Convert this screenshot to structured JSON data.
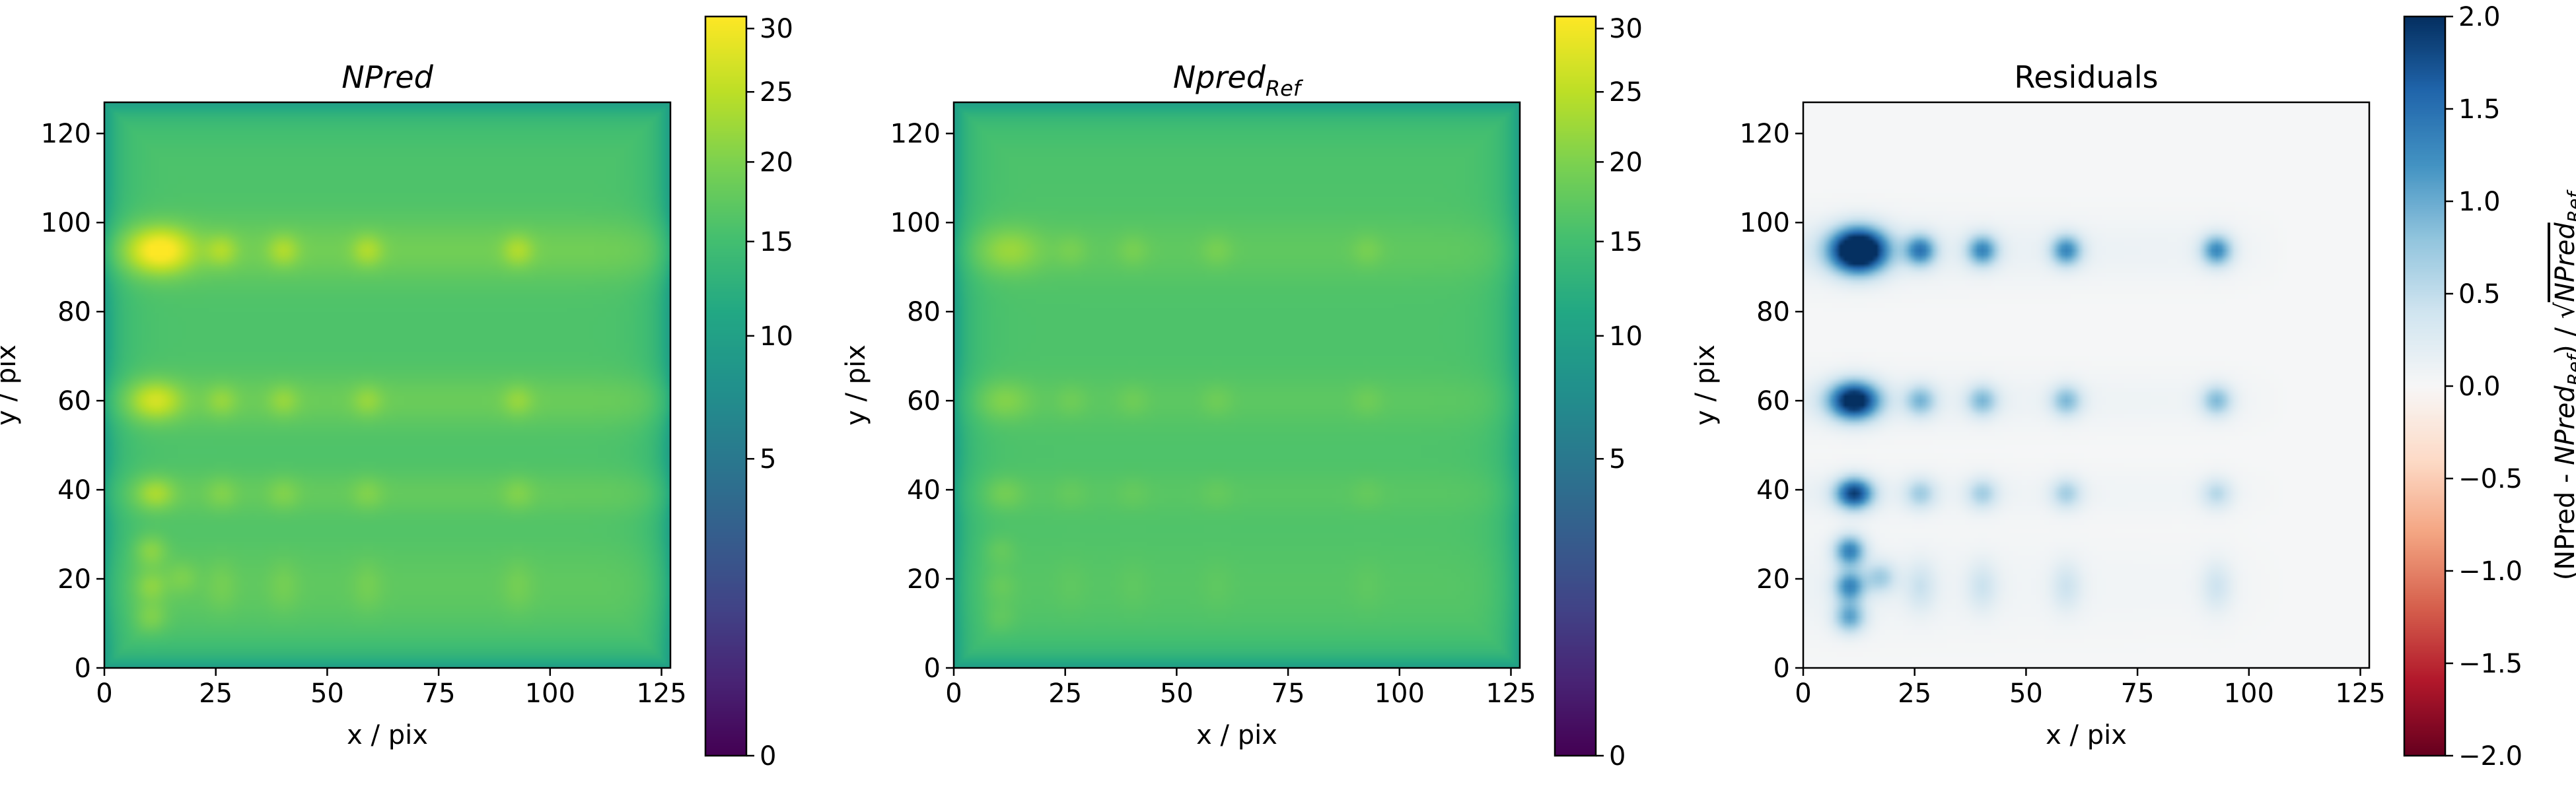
{
  "chart_data": [
    {
      "type": "heatmap",
      "title": "NPred",
      "title_style": "italic",
      "xlabel": "x / pix",
      "ylabel": "y / pix",
      "xlim": [
        0,
        127
      ],
      "ylim": [
        0,
        127
      ],
      "xticks": [
        0,
        25,
        50,
        75,
        100,
        125
      ],
      "yticks": [
        0,
        20,
        40,
        60,
        80,
        100,
        120
      ],
      "colormap": "viridis",
      "colorbar": {
        "scale": "sqrt",
        "range": [
          0,
          31
        ],
        "ticks": [
          0,
          5,
          10,
          15,
          20,
          25,
          30
        ],
        "label": ""
      },
      "field": {
        "background": 16,
        "edge_drop": 6,
        "edge_width": 3.5,
        "x_profile": [
          [
            16,
            3
          ],
          [
            127,
            3
          ]
        ]
      },
      "sources": [
        {
          "x": 12,
          "y": 94,
          "amp": 14,
          "sx": 5,
          "sy": 3.5
        },
        {
          "x": 26,
          "y": 94,
          "amp": 5,
          "sx": 2.5,
          "sy": 2.5
        },
        {
          "x": 40,
          "y": 94,
          "amp": 5,
          "sx": 2.5,
          "sy": 2.5
        },
        {
          "x": 59,
          "y": 94,
          "amp": 5,
          "sx": 2.5,
          "sy": 2.5
        },
        {
          "x": 93,
          "y": 94,
          "amp": 5,
          "sx": 2.5,
          "sy": 2.5
        },
        {
          "x": 11,
          "y": 60,
          "amp": 9,
          "sx": 4,
          "sy": 3
        },
        {
          "x": 26,
          "y": 60,
          "amp": 3.5,
          "sx": 2.5,
          "sy": 2.5
        },
        {
          "x": 40,
          "y": 60,
          "amp": 3.5,
          "sx": 2.5,
          "sy": 2.5
        },
        {
          "x": 59,
          "y": 60,
          "amp": 3.5,
          "sx": 2.5,
          "sy": 2.5
        },
        {
          "x": 93,
          "y": 60,
          "amp": 3.5,
          "sx": 2.5,
          "sy": 2.5
        },
        {
          "x": 11,
          "y": 39,
          "amp": 6,
          "sx": 3,
          "sy": 2.5
        },
        {
          "x": 26,
          "y": 39,
          "amp": 2.5,
          "sx": 2.5,
          "sy": 2.5
        },
        {
          "x": 40,
          "y": 39,
          "amp": 2.5,
          "sx": 2.5,
          "sy": 2.5
        },
        {
          "x": 59,
          "y": 39,
          "amp": 2.5,
          "sx": 2.5,
          "sy": 2.5
        },
        {
          "x": 93,
          "y": 39,
          "amp": 2.5,
          "sx": 2.5,
          "sy": 2.5
        },
        {
          "x": 10,
          "y": 26,
          "amp": 4.5,
          "sx": 2.5,
          "sy": 2.5
        },
        {
          "x": 10,
          "y": 18,
          "amp": 4,
          "sx": 2.5,
          "sy": 2.5
        },
        {
          "x": 10,
          "y": 11,
          "amp": 3.5,
          "sx": 2.5,
          "sy": 2.5
        },
        {
          "x": 17,
          "y": 20,
          "amp": 2.5,
          "sx": 2.5,
          "sy": 2.5
        },
        {
          "x": 26,
          "y": 18,
          "amp": 1.8,
          "sx": 2.5,
          "sy": 4
        },
        {
          "x": 40,
          "y": 18,
          "amp": 1.8,
          "sx": 2.5,
          "sy": 4
        },
        {
          "x": 59,
          "y": 18,
          "amp": 1.8,
          "sx": 2.5,
          "sy": 4
        },
        {
          "x": 93,
          "y": 18,
          "amp": 1.8,
          "sx": 2.5,
          "sy": 4
        }
      ]
    },
    {
      "type": "heatmap",
      "title": "Npred",
      "title_subscript": "Ref",
      "title_style": "italic",
      "xlabel": "x / pix",
      "ylabel": "y / pix",
      "xlim": [
        0,
        127
      ],
      "ylim": [
        0,
        127
      ],
      "xticks": [
        0,
        25,
        50,
        75,
        100,
        125
      ],
      "yticks": [
        0,
        20,
        40,
        60,
        80,
        100,
        120
      ],
      "colormap": "viridis",
      "colorbar": {
        "scale": "sqrt",
        "range": [
          0,
          31
        ],
        "ticks": [
          0,
          5,
          10,
          15,
          20,
          25,
          30
        ],
        "label": ""
      },
      "field": {
        "background": 16,
        "edge_drop": 6,
        "edge_width": 3.5,
        "x_profile": [
          [
            16,
            1.5
          ],
          [
            127,
            1.5
          ]
        ]
      },
      "sources": [
        {
          "x": 12,
          "y": 94,
          "amp": 5,
          "sx": 5,
          "sy": 3.5
        },
        {
          "x": 26,
          "y": 94,
          "amp": 2,
          "sx": 2.5,
          "sy": 2.5
        },
        {
          "x": 40,
          "y": 94,
          "amp": 2,
          "sx": 2.5,
          "sy": 2.5
        },
        {
          "x": 59,
          "y": 94,
          "amp": 2,
          "sx": 2.5,
          "sy": 2.5
        },
        {
          "x": 93,
          "y": 94,
          "amp": 2,
          "sx": 2.5,
          "sy": 2.5
        },
        {
          "x": 11,
          "y": 60,
          "amp": 3.5,
          "sx": 4,
          "sy": 3
        },
        {
          "x": 26,
          "y": 60,
          "amp": 1.5,
          "sx": 2.5,
          "sy": 2.5
        },
        {
          "x": 40,
          "y": 60,
          "amp": 1.5,
          "sx": 2.5,
          "sy": 2.5
        },
        {
          "x": 59,
          "y": 60,
          "amp": 1.5,
          "sx": 2.5,
          "sy": 2.5
        },
        {
          "x": 93,
          "y": 60,
          "amp": 1.5,
          "sx": 2.5,
          "sy": 2.5
        },
        {
          "x": 11,
          "y": 39,
          "amp": 2.5,
          "sx": 3,
          "sy": 2.5
        },
        {
          "x": 26,
          "y": 39,
          "amp": 1,
          "sx": 2.5,
          "sy": 2.5
        },
        {
          "x": 40,
          "y": 39,
          "amp": 1,
          "sx": 2.5,
          "sy": 2.5
        },
        {
          "x": 59,
          "y": 39,
          "amp": 1,
          "sx": 2.5,
          "sy": 2.5
        },
        {
          "x": 93,
          "y": 39,
          "amp": 1,
          "sx": 2.5,
          "sy": 2.5
        },
        {
          "x": 10,
          "y": 26,
          "amp": 1.8,
          "sx": 2.5,
          "sy": 2.5
        },
        {
          "x": 10,
          "y": 18,
          "amp": 1.6,
          "sx": 2.5,
          "sy": 2.5
        },
        {
          "x": 10,
          "y": 11,
          "amp": 1.4,
          "sx": 2.5,
          "sy": 2.5
        },
        {
          "x": 26,
          "y": 18,
          "amp": 0.7,
          "sx": 2.5,
          "sy": 4
        },
        {
          "x": 40,
          "y": 18,
          "amp": 0.7,
          "sx": 2.5,
          "sy": 4
        },
        {
          "x": 59,
          "y": 18,
          "amp": 0.7,
          "sx": 2.5,
          "sy": 4
        },
        {
          "x": 93,
          "y": 18,
          "amp": 0.7,
          "sx": 2.5,
          "sy": 4
        }
      ]
    },
    {
      "type": "heatmap",
      "title": "Residuals",
      "title_style": "normal",
      "xlabel": "x / pix",
      "ylabel": "y / pix",
      "xlim": [
        0,
        127
      ],
      "ylim": [
        0,
        127
      ],
      "xticks": [
        0,
        25,
        50,
        75,
        100,
        125
      ],
      "yticks": [
        0,
        20,
        40,
        60,
        80,
        100,
        120
      ],
      "colormap": "RdBu",
      "colorbar": {
        "scale": "linear",
        "range": [
          -2.0,
          2.0
        ],
        "ticks": [
          -2.0,
          -1.5,
          -1.0,
          -0.5,
          0.0,
          0.5,
          1.0,
          1.5,
          2.0
        ],
        "tick_labels": [
          "−2.0",
          "−1.5",
          "−1.0",
          "−0.5",
          "0.0",
          "0.5",
          "1.0",
          "1.5",
          "2.0"
        ],
        "label_parts": [
          "(NPred - ",
          "NPred",
          "Ref",
          ") / √",
          "NPred",
          "Ref"
        ]
      },
      "field": {
        "background": 0.02,
        "edge_drop": 0,
        "edge_width": 3,
        "x_profile": [
          [
            16,
            0.18
          ],
          [
            40,
            0.12
          ],
          [
            59,
            0.1
          ],
          [
            93,
            0.08
          ],
          [
            110,
            0
          ]
        ]
      },
      "sources": [
        {
          "x": 12,
          "y": 94,
          "amp": 2.8,
          "sx": 4.5,
          "sy": 3.5
        },
        {
          "x": 26,
          "y": 94,
          "amp": 1.3,
          "sx": 2.5,
          "sy": 2.5
        },
        {
          "x": 40,
          "y": 94,
          "amp": 1.2,
          "sx": 2.5,
          "sy": 2.5
        },
        {
          "x": 59,
          "y": 94,
          "amp": 1.2,
          "sx": 2.5,
          "sy": 2.5
        },
        {
          "x": 93,
          "y": 94,
          "amp": 1.2,
          "sx": 2.5,
          "sy": 2.5
        },
        {
          "x": 11,
          "y": 60,
          "amp": 2.2,
          "sx": 4,
          "sy": 3
        },
        {
          "x": 26,
          "y": 60,
          "amp": 0.8,
          "sx": 2.5,
          "sy": 2.5
        },
        {
          "x": 40,
          "y": 60,
          "amp": 0.8,
          "sx": 2.5,
          "sy": 2.5
        },
        {
          "x": 59,
          "y": 60,
          "amp": 0.8,
          "sx": 2.5,
          "sy": 2.5
        },
        {
          "x": 93,
          "y": 60,
          "amp": 0.8,
          "sx": 2.5,
          "sy": 2.5
        },
        {
          "x": 11,
          "y": 39,
          "amp": 1.8,
          "sx": 3,
          "sy": 2.5
        },
        {
          "x": 26,
          "y": 39,
          "amp": 0.6,
          "sx": 2.5,
          "sy": 2.5
        },
        {
          "x": 40,
          "y": 39,
          "amp": 0.6,
          "sx": 2.5,
          "sy": 2.5
        },
        {
          "x": 59,
          "y": 39,
          "amp": 0.6,
          "sx": 2.5,
          "sy": 2.5
        },
        {
          "x": 93,
          "y": 39,
          "amp": 0.5,
          "sx": 2.5,
          "sy": 2.5
        },
        {
          "x": 10,
          "y": 26,
          "amp": 1.3,
          "sx": 2.5,
          "sy": 2.5
        },
        {
          "x": 10,
          "y": 18,
          "amp": 1.2,
          "sx": 2.5,
          "sy": 2.5
        },
        {
          "x": 10,
          "y": 11,
          "amp": 1.0,
          "sx": 2.5,
          "sy": 2.5
        },
        {
          "x": 17,
          "y": 20,
          "amp": 0.6,
          "sx": 2.5,
          "sy": 2.5
        },
        {
          "x": 26,
          "y": 18,
          "amp": 0.35,
          "sx": 2.5,
          "sy": 4
        },
        {
          "x": 40,
          "y": 18,
          "amp": 0.35,
          "sx": 2.5,
          "sy": 4
        },
        {
          "x": 59,
          "y": 18,
          "amp": 0.35,
          "sx": 2.5,
          "sy": 4
        },
        {
          "x": 93,
          "y": 18,
          "amp": 0.35,
          "sx": 2.5,
          "sy": 4
        }
      ]
    }
  ]
}
